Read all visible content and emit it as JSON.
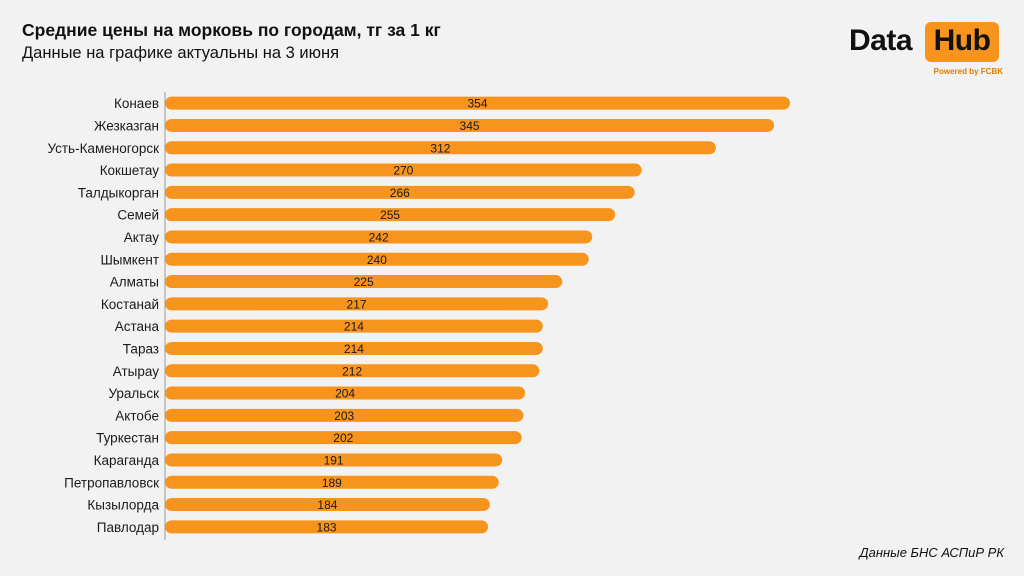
{
  "header": {
    "title": "Средние цены на морковь по городам, тг за 1 кг",
    "subtitle": "Данные на графике актуальны на 3 июня"
  },
  "logo": {
    "word1": "Data",
    "word2": "Hub",
    "tagline": "Powered by FCBK"
  },
  "source": "Данные БНС АСПиР РК",
  "colors": {
    "bar": "#f7941d",
    "axis": "#999999",
    "background": "#f2f2f2"
  },
  "chart_data": {
    "type": "bar",
    "orientation": "horizontal",
    "categories": [
      "Конаев",
      "Жезказган",
      "Усть-Каменогорск",
      "Кокшетау",
      "Талдыкорган",
      "Семей",
      "Актау",
      "Шымкент",
      "Алматы",
      "Костанай",
      "Астана",
      "Тараз",
      "Атырау",
      "Уральск",
      "Актобе",
      "Туркестан",
      "Караганда",
      "Петропавловск",
      "Кызылорда",
      "Павлодар"
    ],
    "values": [
      354,
      345,
      312,
      270,
      266,
      255,
      242,
      240,
      225,
      217,
      214,
      214,
      212,
      204,
      203,
      202,
      191,
      189,
      184,
      183
    ],
    "title": "Средние цены на морковь по городам, тг за 1 кг",
    "subtitle": "Данные на графике актуальны на 3 июня",
    "xlim": [
      0,
      354
    ],
    "grid": false,
    "legend": "none",
    "data_labels": true
  }
}
